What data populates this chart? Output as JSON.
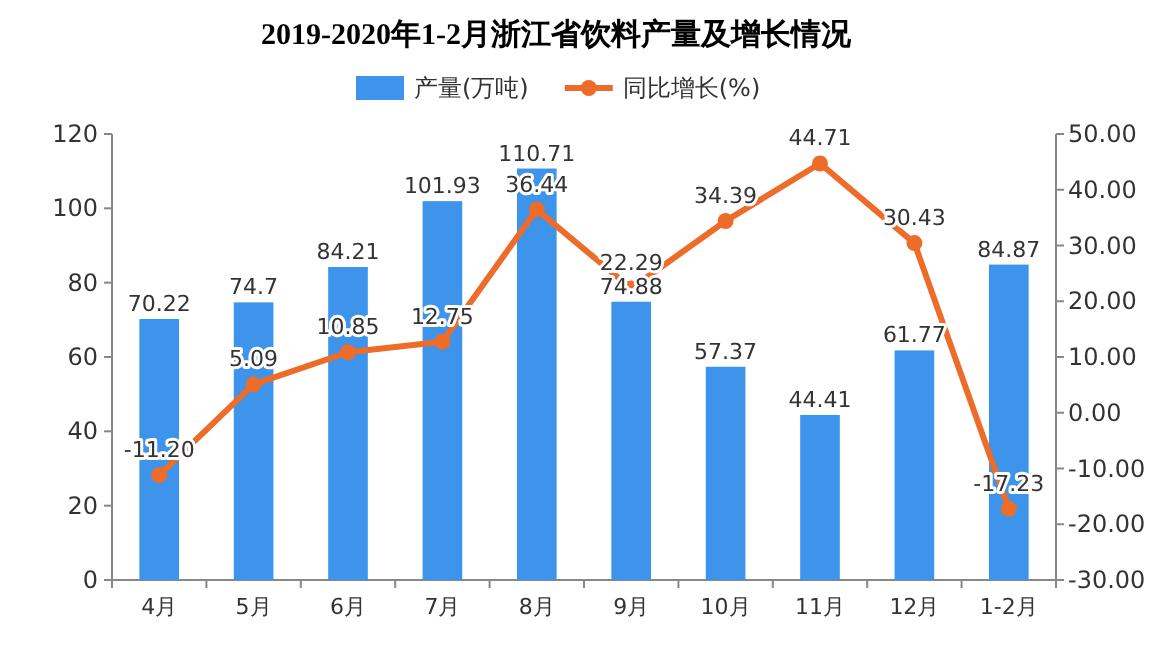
{
  "chart_data": {
    "type": "bar",
    "title": "2019-2020年1-2月浙江省饮料产量及增长情况",
    "categories": [
      "4月",
      "5月",
      "6月",
      "7月",
      "8月",
      "9月",
      "10月",
      "11月",
      "12月",
      "1-2月"
    ],
    "series": [
      {
        "name": "产量(万吨)",
        "color": "#3d94ea",
        "values": [
          70.22,
          74.7,
          84.21,
          101.93,
          110.71,
          74.88,
          57.37,
          44.41,
          61.77,
          84.87
        ],
        "value_labels": [
          "70.22",
          "74.7",
          "84.21",
          "101.93",
          "110.71",
          "74.88",
          "57.37",
          "44.41",
          "61.77",
          "84.87"
        ]
      },
      {
        "name": "同比增长(%)",
        "type": "line",
        "axis": "y2",
        "marker": "circle",
        "color": "#ee6c2a",
        "values": [
          -11.2,
          5.09,
          10.85,
          12.75,
          36.44,
          22.29,
          34.39,
          44.71,
          30.43,
          -17.23
        ],
        "value_labels": [
          "-11.20",
          "5.09",
          "10.85",
          "12.75",
          "36.44",
          "22.29",
          "34.39",
          "44.71",
          "30.43",
          "-17.23"
        ]
      }
    ],
    "ylim": [
      0,
      120
    ],
    "yticks": [
      0,
      20,
      40,
      60,
      80,
      100,
      120
    ],
    "y2lim": [
      -30,
      50
    ],
    "y2ticks": [
      {
        "value": -30,
        "label": "-30.00"
      },
      {
        "value": -20,
        "label": "-20.00"
      },
      {
        "value": -10,
        "label": "-10.00"
      },
      {
        "value": 0,
        "label": "0.00"
      },
      {
        "value": 10,
        "label": "10.00"
      },
      {
        "value": 20,
        "label": "20.00"
      },
      {
        "value": 30,
        "label": "30.00"
      },
      {
        "value": 40,
        "label": "40.00"
      },
      {
        "value": 50,
        "label": "50.00"
      }
    ],
    "legend": "top"
  }
}
